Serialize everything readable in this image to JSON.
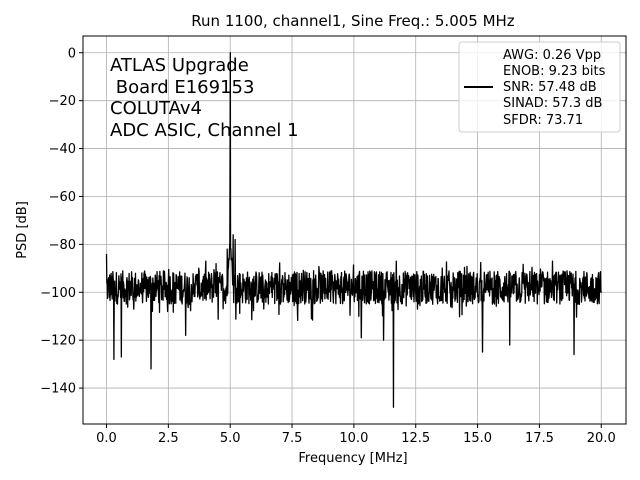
{
  "chart_data": {
    "type": "line",
    "title": "Run 1100, channel1, Sine Freq.: 5.005 MHz",
    "xlabel": "Frequency [MHz]",
    "ylabel": "PSD [dB]",
    "xlim": [
      -0.95,
      21.0
    ],
    "ylim": [
      -155,
      7
    ],
    "xticks": [
      0.0,
      2.5,
      5.0,
      7.5,
      10.0,
      12.5,
      15.0,
      17.5,
      20.0
    ],
    "xtick_labels": [
      "0.0",
      "2.5",
      "5.0",
      "7.5",
      "10.0",
      "12.5",
      "15.0",
      "17.5",
      "20.0"
    ],
    "yticks": [
      0,
      -20,
      -40,
      -60,
      -80,
      -100,
      -120,
      -140
    ],
    "ytick_labels": [
      "0",
      "−20",
      "−40",
      "−60",
      "−80",
      "−100",
      "−120",
      "−140"
    ],
    "grid": true,
    "annotation_lines": [
      "ATLAS Upgrade",
      " Board E169153",
      "COLUTAv4",
      "ADC ASIC, Channel 1"
    ],
    "legend": {
      "placement": "top-right",
      "entries": [
        "AWG: 0.26 Vpp",
        "ENOB: 9.23 bits",
        "SNR: 57.48 dB",
        "SINAD: 57.3 dB",
        "SFDR: 73.71"
      ],
      "line_color": "#000000"
    },
    "series": [
      {
        "noise_floor_db": -98,
        "noise_band_db": [
          -112,
          -87
        ],
        "color": "#000000",
        "peaks": [
          {
            "x": 5.005,
            "y": 0
          }
        ],
        "spurs": [
          {
            "x": 0.0,
            "y": -84
          },
          {
            "x": 4.88,
            "y": -82
          },
          {
            "x": 5.12,
            "y": -76
          },
          {
            "x": 5.2,
            "y": -78
          }
        ],
        "dips": [
          {
            "x": 0.3,
            "y": -128
          },
          {
            "x": 0.6,
            "y": -127
          },
          {
            "x": 1.8,
            "y": -132
          },
          {
            "x": 11.6,
            "y": -148
          },
          {
            "x": 10.3,
            "y": -119
          },
          {
            "x": 11.2,
            "y": -120
          },
          {
            "x": 15.2,
            "y": -125
          },
          {
            "x": 16.3,
            "y": -122
          },
          {
            "x": 18.9,
            "y": -126
          },
          {
            "x": 3.2,
            "y": -118
          }
        ]
      }
    ]
  },
  "colors": {
    "grid": "#b0b0b0",
    "axes": "#000000",
    "background": "#ffffff"
  }
}
